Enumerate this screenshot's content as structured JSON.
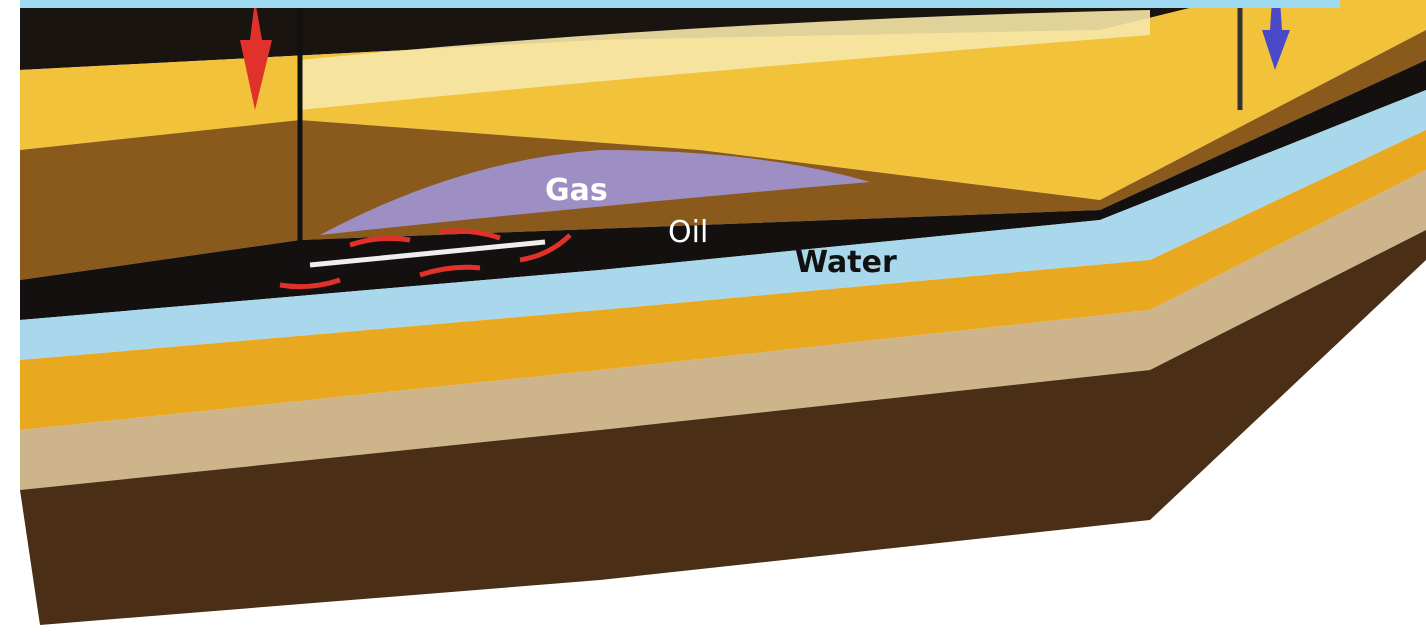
{
  "labels": {
    "gas": "Gas",
    "oil": "Oil",
    "water": "Water"
  }
}
